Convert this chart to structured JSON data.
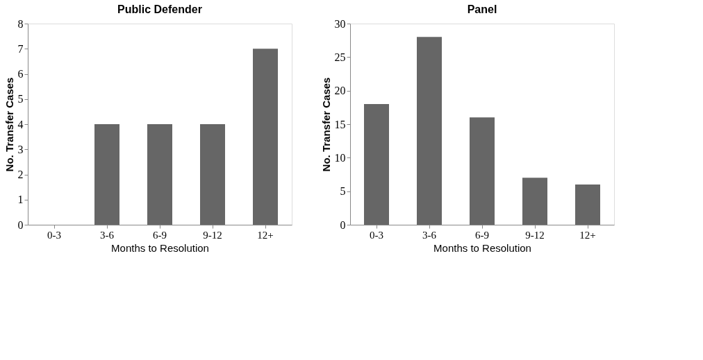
{
  "chart_data": [
    {
      "type": "bar",
      "title": "Public Defender",
      "xlabel": "Months to Resolution",
      "ylabel": "No. Transfer Cases",
      "categories": [
        "0-3",
        "3-6",
        "6-9",
        "9-12",
        "12+"
      ],
      "series": [
        {
          "color": "#666666",
          "values": [
            0,
            4,
            4,
            4,
            7
          ]
        }
      ],
      "ylim": [
        0,
        8
      ],
      "yticks": [
        0,
        1,
        2,
        3,
        4,
        5,
        6,
        7,
        8
      ],
      "grid": false,
      "legend": false
    },
    {
      "type": "bar",
      "title": "Panel",
      "xlabel": "Months to Resolution",
      "ylabel": "No. Transfer Cases",
      "categories": [
        "0-3",
        "3-6",
        "6-9",
        "9-12",
        "12+"
      ],
      "series": [
        {
          "color": "#666666",
          "values": [
            18,
            28,
            16,
            7,
            6
          ]
        }
      ],
      "ylim": [
        0,
        30
      ],
      "yticks": [
        0,
        5,
        10,
        15,
        20,
        25,
        30
      ],
      "grid": false,
      "legend": false
    }
  ]
}
